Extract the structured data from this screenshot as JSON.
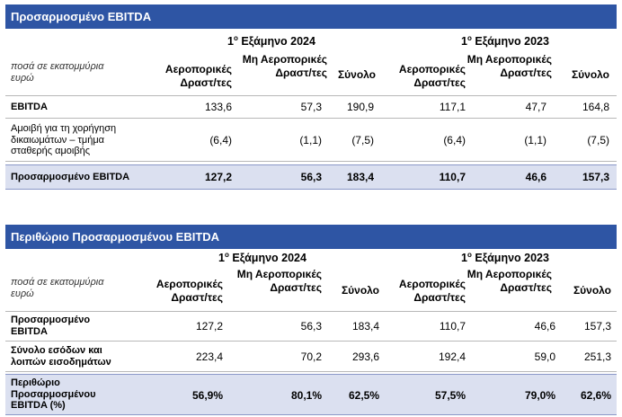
{
  "table1": {
    "title": "Προσαρμοσμένο EBITDA",
    "period_2024_num": "1",
    "period_2024_sup": "ο",
    "period_2024_text": " Εξάμηνο 2024",
    "period_2023_num": "1",
    "period_2023_sup": "ο",
    "period_2023_text": " Εξάμηνο 2023",
    "units_note": "ποσά σε εκατομμύρια ευρώ",
    "col_aero": "Αεροπορικές Δραστ/τες",
    "col_nonaero": "Μη Αεροπορικές Δραστ/τες",
    "col_total": "Σύνολο",
    "rows": [
      {
        "label": "EBITDA",
        "v": [
          "133,6",
          "57,3",
          "190,9",
          "117,1",
          "47,7",
          "164,8"
        ]
      },
      {
        "label": "Αμοιβή για τη χορήγηση δικαιωμάτων – τμήμα σταθερής αμοιβής",
        "v": [
          "(6,4)",
          "(1,1)",
          "(7,5)",
          "(6,4)",
          "(1,1)",
          "(7,5)"
        ]
      },
      {
        "label": "Προσαρμοσμένο EBITDA",
        "v": [
          "127,2",
          "56,3",
          "183,4",
          "110,7",
          "46,6",
          "157,3"
        ]
      }
    ]
  },
  "table2": {
    "title": "Περιθώριο Προσαρμοσμένου EBITDA",
    "period_2024_num": "1",
    "period_2024_sup": "ο",
    "period_2024_text": " Εξάμηνο 2024",
    "period_2023_num": "1",
    "period_2023_sup": "ο",
    "period_2023_text": " Εξάμηνο 2023",
    "units_note": "ποσά σε εκατομμύρια ευρώ",
    "col_aero": "Αεροπορικές Δραστ/τες",
    "col_nonaero": "Μη Αεροπορικές Δραστ/τες",
    "col_total": "Σύνολο",
    "rows": [
      {
        "label": "Προσαρμοσμένο EBITDA",
        "v": [
          "127,2",
          "56,3",
          "183,4",
          "110,7",
          "46,6",
          "157,3"
        ]
      },
      {
        "label": "Σύνολο εσόδων και λοιπών εισοδημάτων",
        "v": [
          "223,4",
          "70,2",
          "293,6",
          "192,4",
          "59,0",
          "251,3"
        ]
      },
      {
        "label": "Περιθώριο Προσαρμοσμένου EBITDA  (%)",
        "v": [
          "56,9%",
          "80,1%",
          "62,5%",
          "57,5%",
          "79,0%",
          "62,6%"
        ]
      }
    ]
  }
}
